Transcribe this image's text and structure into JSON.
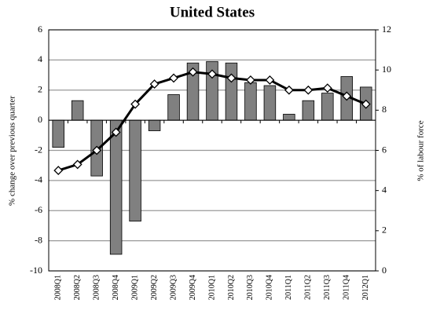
{
  "chart_data": {
    "type": "bar",
    "title": "United States",
    "y_label": "% change over previous quarter",
    "y2_label": "% of labour force",
    "categories": [
      "2008Q1",
      "2008Q2",
      "2008Q3",
      "2008Q4",
      "2009Q1",
      "2009Q2",
      "2009Q3",
      "2009Q4",
      "2010Q1",
      "2010Q2",
      "2010Q3",
      "2010Q4",
      "2011Q1",
      "2011Q2",
      "2011Q3",
      "2011Q4",
      "2012Q1"
    ],
    "series": [
      {
        "type": "bar",
        "color": "#808080",
        "values": [
          -1.8,
          1.3,
          -3.7,
          -8.9,
          -6.7,
          -0.7,
          1.7,
          3.8,
          3.9,
          3.8,
          2.5,
          2.3,
          0.4,
          1.3,
          1.8,
          2.9,
          2.2
        ]
      },
      {
        "type": "line",
        "axis": "y2",
        "color": "#000000",
        "values": [
          5.0,
          5.3,
          6.0,
          6.9,
          8.3,
          9.3,
          9.6,
          9.9,
          9.8,
          9.6,
          9.5,
          9.5,
          9.0,
          9.0,
          9.1,
          8.7,
          8.3
        ]
      }
    ],
    "ylim": [
      -10,
      6
    ],
    "yticks": [
      -10,
      -8,
      -6,
      -4,
      -2,
      0,
      2,
      4,
      6
    ],
    "y2lim": [
      0,
      12
    ],
    "y2ticks": [
      0,
      2,
      4,
      6,
      8,
      10,
      12
    ],
    "grid": true
  }
}
